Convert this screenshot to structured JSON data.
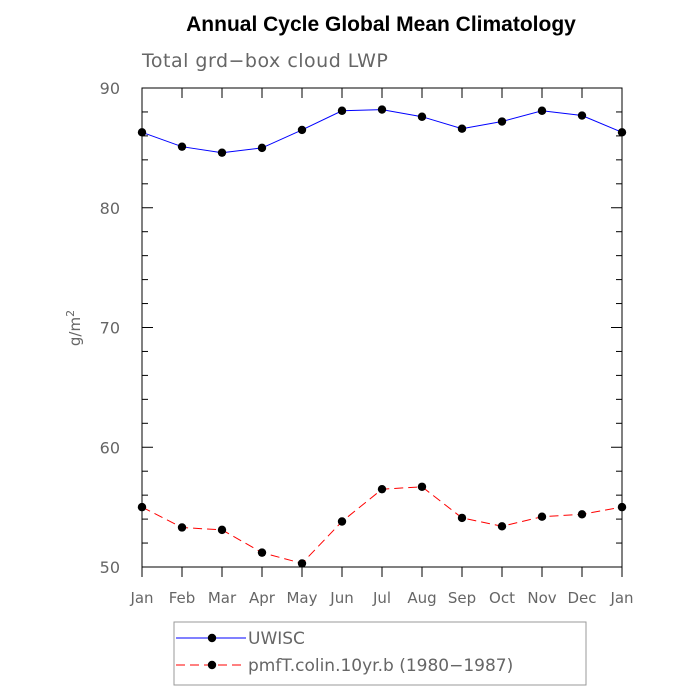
{
  "chart_data": {
    "type": "line",
    "title": "Annual Cycle Global Mean Climatology",
    "subtitle": "Total grd−box cloud LWP",
    "xlabel": "",
    "ylabel": "g/m",
    "ylabel_superscript": "2",
    "categories": [
      "Jan",
      "Feb",
      "Mar",
      "Apr",
      "May",
      "Jun",
      "Jul",
      "Aug",
      "Sep",
      "Oct",
      "Nov",
      "Dec",
      "Jan"
    ],
    "ylim": [
      50,
      90
    ],
    "yticks": [
      50,
      60,
      70,
      80,
      90
    ],
    "grid": false,
    "legend_position": "bottom",
    "series": [
      {
        "name": "UWISC",
        "color": "#0000ff",
        "line_style": "solid",
        "marker": "filled-circle",
        "values": [
          86.3,
          85.1,
          84.6,
          85.0,
          86.5,
          88.1,
          88.2,
          87.6,
          86.6,
          87.2,
          88.1,
          87.7,
          86.3
        ]
      },
      {
        "name": "pmfT.colin.10yr.b (1980−1987)",
        "color": "#ff0000",
        "line_style": "dashed",
        "marker": "filled-circle",
        "values": [
          55.0,
          53.3,
          53.1,
          51.2,
          50.3,
          53.8,
          56.5,
          56.7,
          54.1,
          53.4,
          54.2,
          54.4,
          55.0
        ]
      }
    ]
  }
}
